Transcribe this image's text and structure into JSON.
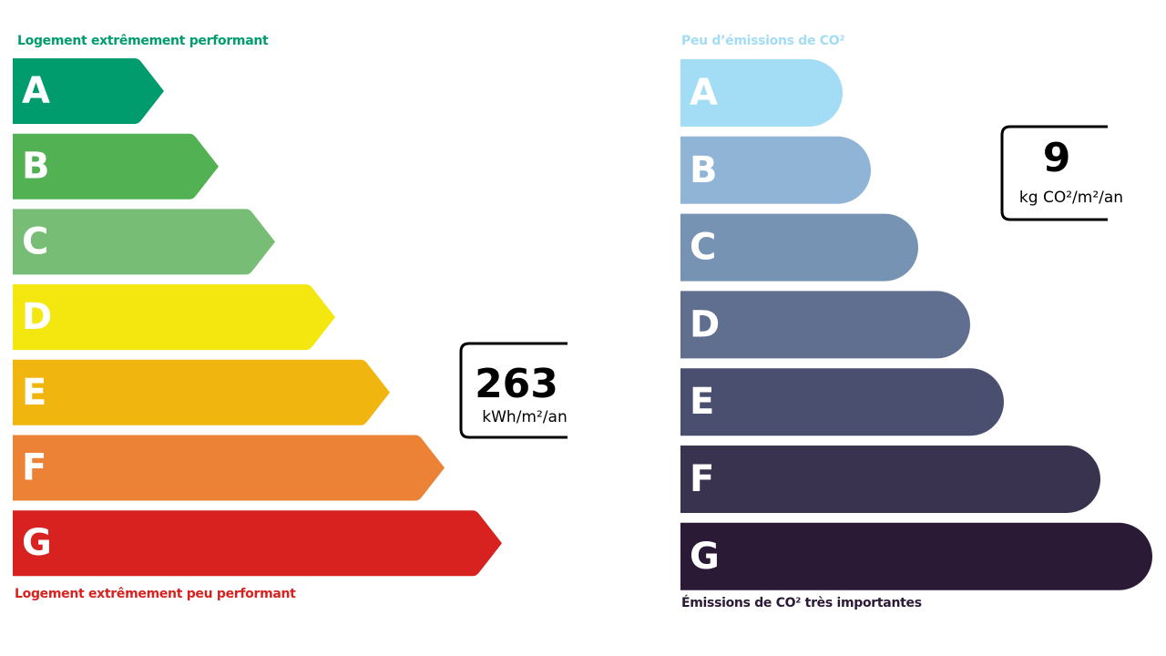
{
  "energy": {
    "top_label": "Logement extrêmement performant",
    "bottom_label": "Logement extrêmement peu performant",
    "top_color": "#009c6d",
    "bottom_color": "#d7221f",
    "classes": [
      {
        "letter": "A",
        "color": "#009c6d"
      },
      {
        "letter": "B",
        "color": "#52b153"
      },
      {
        "letter": "C",
        "color": "#78bd76"
      },
      {
        "letter": "D",
        "color": "#f4e70f"
      },
      {
        "letter": "E",
        "color": "#f0b50f"
      },
      {
        "letter": "F",
        "color": "#eb8235"
      },
      {
        "letter": "G",
        "color": "#d7221f"
      }
    ],
    "value": 263,
    "unit": "kWh/m²/an"
  },
  "climate": {
    "top_label": "Peu d’émissions de CO²",
    "bottom_label": "Émissions de CO² très importantes",
    "top_color": "#a3dcf5",
    "bottom_color": "#2b1a36",
    "classes": [
      {
        "letter": "A",
        "color": "#a3dcf5"
      },
      {
        "letter": "B",
        "color": "#8fb4d6"
      },
      {
        "letter": "C",
        "color": "#7793b4"
      },
      {
        "letter": "D",
        "color": "#606f90"
      },
      {
        "letter": "E",
        "color": "#4b4f6f"
      },
      {
        "letter": "F",
        "color": "#39334f"
      },
      {
        "letter": "G",
        "color": "#2b1a36"
      }
    ],
    "value": 9,
    "unit": "kg CO²/m²/an"
  }
}
